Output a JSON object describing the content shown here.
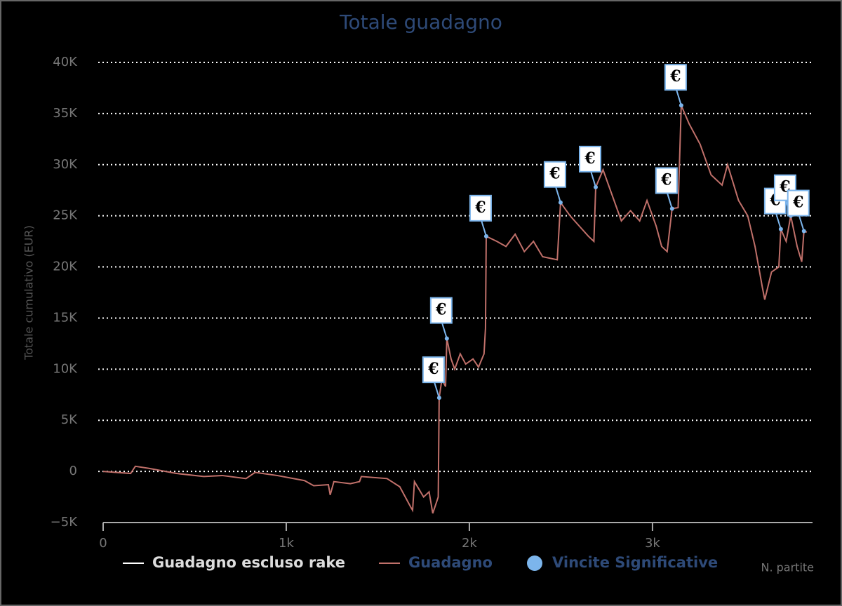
{
  "chart_data": {
    "type": "line",
    "title": "Totale guadagno",
    "y_label": "Totale cumulativo (EUR)",
    "x_label": "N. partite",
    "xlim": [
      0,
      3874
    ],
    "xticks": [
      0,
      {
        "value": 1000,
        "label": "1k"
      },
      {
        "value": 2000,
        "label": "2k"
      },
      {
        "value": 3000,
        "label": "3k"
      }
    ],
    "ylim": [
      -5000,
      40000
    ],
    "yticks": [
      {
        "value": -5000,
        "label": "−5K"
      },
      0,
      {
        "value": 5000,
        "label": "5K"
      },
      {
        "value": 10000,
        "label": "10K"
      },
      {
        "value": 15000,
        "label": "15K"
      },
      {
        "value": 20000,
        "label": "20K"
      },
      {
        "value": 25000,
        "label": "25K"
      },
      {
        "value": 30000,
        "label": "30K"
      },
      {
        "value": 35000,
        "label": "35K"
      },
      {
        "value": 40000,
        "label": "40K"
      }
    ],
    "grid": true,
    "series": [
      {
        "name": "Guadagno escluso rake",
        "color": "#ffffff",
        "x": [],
        "values": []
      },
      {
        "name": "Guadagno",
        "color": "#c0706a",
        "x": [
          0,
          150,
          176,
          250,
          400,
          550,
          650,
          780,
          830,
          950,
          1100,
          1150,
          1230,
          1240,
          1260,
          1350,
          1400,
          1410,
          1550,
          1620,
          1680,
          1690,
          1700,
          1750,
          1780,
          1800,
          1830,
          1835,
          1850,
          1870,
          1877,
          1900,
          1920,
          1950,
          1980,
          2020,
          2050,
          2080,
          2088,
          2092,
          2150,
          2200,
          2250,
          2300,
          2350,
          2400,
          2480,
          2498,
          2550,
          2600,
          2650,
          2680,
          2690,
          2730,
          2780,
          2830,
          2880,
          2930,
          2970,
          3020,
          3050,
          3080,
          3107,
          3140,
          3157,
          3200,
          3260,
          3320,
          3380,
          3410,
          3470,
          3520,
          3560,
          3600,
          3613,
          3650,
          3690,
          3701,
          3730,
          3755,
          3790,
          3815,
          3827,
          3843
        ],
        "values": [
          0,
          -200,
          500,
          300,
          -200,
          -500,
          -400,
          -700,
          -100,
          -400,
          -900,
          -1400,
          -1300,
          -2300,
          -1000,
          -1200,
          -1000,
          -500,
          -700,
          -1500,
          -3500,
          -3800,
          -1000,
          -2500,
          -2000,
          -4100,
          -2500,
          7200,
          9000,
          8300,
          13000,
          11000,
          10000,
          11500,
          10500,
          11000,
          10200,
          11500,
          14000,
          23000,
          22500,
          22000,
          23200,
          21500,
          22500,
          21000,
          20700,
          26300,
          25000,
          24000,
          23000,
          22500,
          27800,
          29500,
          27000,
          24500,
          25500,
          24500,
          26500,
          24000,
          22000,
          21500,
          25700,
          25800,
          35800,
          34000,
          32000,
          29000,
          28000,
          30000,
          26500,
          25000,
          22000,
          18000,
          16800,
          19500,
          20000,
          23700,
          22500,
          25000,
          22000,
          20500,
          23500,
          23400
        ]
      },
      {
        "name": "Vincite Significative",
        "type": "scatter",
        "color": "#7cb5ec",
        "x": [
          1835,
          1877,
          2092,
          2498,
          2690,
          3107,
          3157,
          3701,
          3755,
          3827
        ],
        "values": [
          7200,
          13000,
          23000,
          26300,
          27800,
          25700,
          35800,
          23700,
          25000,
          23500
        ],
        "labels": [
          "€",
          "€",
          "€",
          "€",
          "€",
          "€",
          "€",
          "€",
          "€",
          "€"
        ]
      }
    ]
  }
}
